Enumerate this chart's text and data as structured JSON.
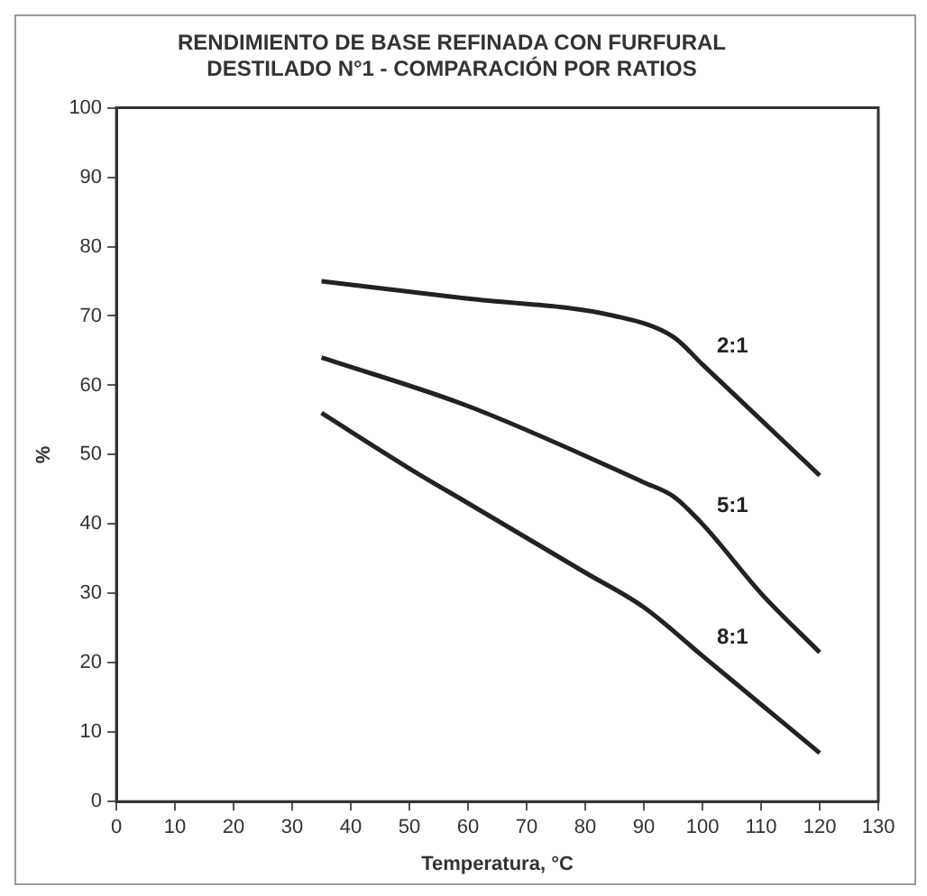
{
  "chart_data": {
    "type": "line",
    "title": "RENDIMIENTO DE BASE REFINADA CON FURFURAL\nDESTILADO N°1 - COMPARACIÓN POR RATIOS",
    "xlabel": "Temperatura, °C",
    "ylabel": "%",
    "xlim": [
      0,
      130
    ],
    "xticks": [
      0,
      10,
      20,
      30,
      40,
      50,
      60,
      70,
      80,
      90,
      100,
      110,
      120,
      130
    ],
    "ylim": [
      0,
      100
    ],
    "yticks": [
      0,
      10,
      20,
      30,
      40,
      50,
      60,
      70,
      80,
      90,
      100
    ],
    "grid": false,
    "legend": false,
    "series": [
      {
        "name": "2:1",
        "color": "#222222",
        "x": [
          35,
          60,
          85,
          95,
          100,
          110,
          120
        ],
        "values": [
          75,
          72.5,
          70,
          67,
          63,
          55,
          47
        ]
      },
      {
        "name": "5:1",
        "color": "#222222",
        "x": [
          35,
          60,
          90,
          95,
          100,
          110,
          120
        ],
        "values": [
          64,
          57,
          46,
          44,
          40,
          30,
          21.5
        ]
      },
      {
        "name": "8:1",
        "color": "#222222",
        "x": [
          35,
          50,
          60,
          80,
          90,
          100,
          110,
          120
        ],
        "values": [
          56,
          48,
          43,
          33,
          28,
          21,
          14,
          7
        ]
      }
    ]
  }
}
